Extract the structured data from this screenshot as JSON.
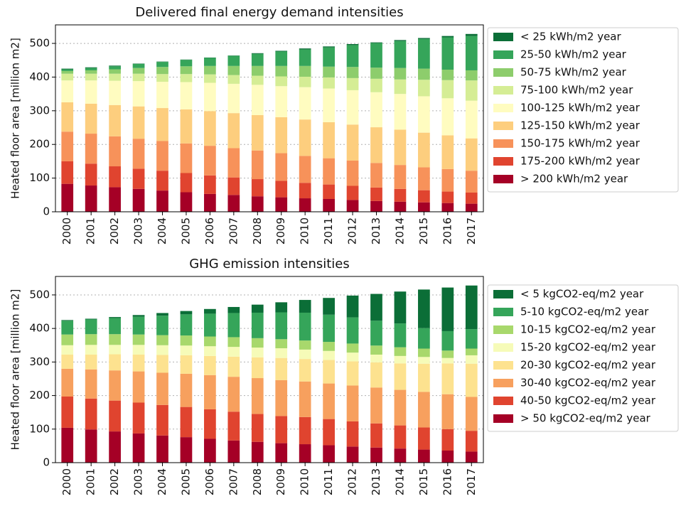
{
  "chart_data": [
    {
      "type": "stacked-bar",
      "title": "Delivered final energy demand intensities",
      "ylabel": "Heated floor area [million m2]",
      "categories": [
        "2000",
        "2001",
        "2002",
        "2003",
        "2004",
        "2005",
        "2006",
        "2007",
        "2008",
        "2009",
        "2010",
        "2011",
        "2012",
        "2013",
        "2014",
        "2015",
        "2016",
        "2017"
      ],
      "ylim": [
        0,
        555
      ],
      "yticks": [
        0,
        100,
        200,
        300,
        400,
        500
      ],
      "grid": true,
      "series": [
        {
          "name": "> 200 kWh/m2 year",
          "color": "#a50026",
          "values": [
            83,
            78,
            73,
            68,
            63,
            58,
            53,
            50,
            46,
            43,
            40,
            38,
            35,
            32,
            30,
            28,
            26,
            24
          ]
        },
        {
          "name": "175-200 kWh/m2 year",
          "color": "#e0442f",
          "values": [
            67,
            65,
            62,
            60,
            59,
            57,
            55,
            52,
            51,
            49,
            46,
            43,
            42,
            40,
            38,
            36,
            34,
            33
          ]
        },
        {
          "name": "150-175 kWh/m2 year",
          "color": "#f7925a",
          "values": [
            88,
            89,
            89,
            89,
            88,
            88,
            88,
            87,
            85,
            82,
            80,
            78,
            75,
            73,
            71,
            68,
            67,
            65
          ]
        },
        {
          "name": "125-150 kWh/m2 year",
          "color": "#fdce7e",
          "values": [
            87,
            89,
            93,
            96,
            98,
            101,
            103,
            104,
            105,
            107,
            108,
            107,
            107,
            106,
            105,
            103,
            100,
            96
          ]
        },
        {
          "name": "100-125 kWh/m2 year",
          "color": "#fffcc0",
          "values": [
            65,
            69,
            72,
            75,
            78,
            81,
            84,
            87,
            90,
            92,
            96,
            100,
            102,
            104,
            106,
            108,
            110,
            112
          ]
        },
        {
          "name": "75-100 kWh/m2 year",
          "color": "#d5ed95",
          "values": [
            20,
            20,
            21,
            22,
            23,
            24,
            25,
            26,
            27,
            29,
            31,
            33,
            36,
            40,
            43,
            49,
            54,
            60
          ]
        },
        {
          "name": "50-75 kWh/m2 year",
          "color": "#8dcd6c",
          "values": [
            8,
            10,
            13,
            17,
            21,
            23,
            25,
            27,
            29,
            31,
            32,
            32,
            33,
            33,
            34,
            33,
            31,
            30
          ]
        },
        {
          "name": "25-50 kWh/m2 year",
          "color": "#35a55a",
          "values": [
            5,
            7,
            9,
            12,
            15,
            19,
            24,
            30,
            36,
            43,
            49,
            57,
            65,
            73,
            80,
            88,
            96,
            102
          ]
        },
        {
          "name": "< 25 kWh/m2 year",
          "color": "#0b6e37",
          "values": [
            2,
            2,
            2,
            1,
            1,
            1,
            1,
            1,
            2,
            2,
            3,
            3,
            3,
            2,
            3,
            3,
            4,
            6
          ]
        }
      ]
    },
    {
      "type": "stacked-bar",
      "title": "GHG emission intensities",
      "ylabel": "Heated floor area [million m2]",
      "categories": [
        "2000",
        "2001",
        "2002",
        "2003",
        "2004",
        "2005",
        "2006",
        "2007",
        "2008",
        "2009",
        "2010",
        "2011",
        "2012",
        "2013",
        "2014",
        "2015",
        "2016",
        "2017"
      ],
      "ylim": [
        0,
        555
      ],
      "yticks": [
        0,
        100,
        200,
        300,
        400,
        500
      ],
      "grid": true,
      "series": [
        {
          "name": "> 50 kgCO2-eq/m2 year",
          "color": "#a50026",
          "values": [
            104,
            99,
            93,
            87,
            81,
            76,
            71,
            66,
            62,
            58,
            55,
            52,
            48,
            45,
            42,
            39,
            36,
            33
          ]
        },
        {
          "name": "40-50 kgCO2-eq/m2 year",
          "color": "#e0442f",
          "values": [
            93,
            92,
            92,
            92,
            91,
            90,
            88,
            86,
            83,
            81,
            81,
            78,
            75,
            72,
            69,
            66,
            64,
            62
          ]
        },
        {
          "name": "30-40 kgCO2-eq/m2 year",
          "color": "#f7a05e",
          "values": [
            83,
            87,
            90,
            93,
            96,
            99,
            102,
            104,
            107,
            107,
            106,
            106,
            107,
            107,
            106,
            106,
            104,
            101
          ]
        },
        {
          "name": "20-30 kgCO2-eq/m2 year",
          "color": "#fde28f",
          "values": [
            42,
            44,
            48,
            50,
            53,
            55,
            57,
            60,
            62,
            66,
            67,
            70,
            72,
            75,
            79,
            84,
            92,
            99
          ]
        },
        {
          "name": "15-20 kgCO2-eq/m2 year",
          "color": "#f6fbb8",
          "values": [
            28,
            29,
            28,
            29,
            29,
            29,
            29,
            29,
            29,
            29,
            28,
            27,
            26,
            23,
            22,
            20,
            16,
            25
          ]
        },
        {
          "name": "10-15 kgCO2-eq/m2 year",
          "color": "#a8d86c",
          "values": [
            32,
            32,
            32,
            31,
            30,
            30,
            29,
            29,
            28,
            27,
            27,
            27,
            27,
            27,
            26,
            25,
            22,
            20
          ]
        },
        {
          "name": "5-10 kgCO2-eq/m2 year",
          "color": "#35a55a",
          "values": [
            41,
            44,
            48,
            53,
            58,
            63,
            68,
            72,
            76,
            80,
            83,
            81,
            78,
            74,
            71,
            61,
            58,
            58
          ]
        },
        {
          "name": "< 5 kgCO2-eq/m2 year",
          "color": "#0b6e37",
          "values": [
            2,
            2,
            3,
            5,
            8,
            10,
            14,
            18,
            24,
            30,
            38,
            50,
            65,
            80,
            95,
            115,
            130,
            130
          ]
        }
      ]
    }
  ]
}
